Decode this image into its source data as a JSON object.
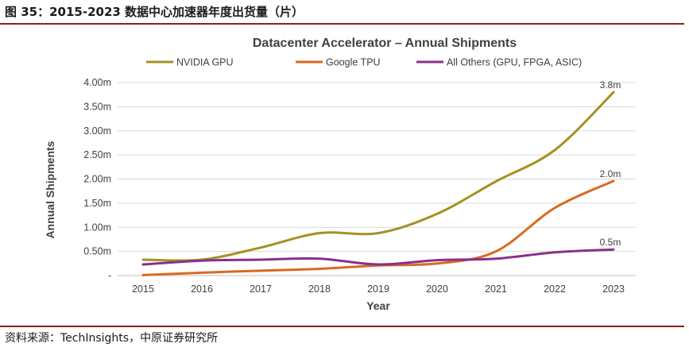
{
  "figure_title": "图 35：2015-2023 数据中心加速器年度出货量（片）",
  "source": "资料来源：TechInsights，中原证券研究所",
  "chart_data": {
    "type": "line",
    "title": "Datacenter Accelerator – Annual Shipments",
    "xlabel": "Year",
    "ylabel": "Annual Shipments",
    "x": [
      "2015",
      "2016",
      "2017",
      "2018",
      "2019",
      "2020",
      "2021",
      "2022",
      "2023"
    ],
    "ylim": [
      0,
      4.0
    ],
    "yticks": [
      0,
      0.5,
      1.0,
      1.5,
      2.0,
      2.5,
      3.0,
      3.5,
      4.0
    ],
    "ytick_labels": [
      "-",
      "0.50m",
      "1.00m",
      "1.50m",
      "2.00m",
      "2.50m",
      "3.00m",
      "3.50m",
      "4.00m"
    ],
    "series": [
      {
        "name": "NVIDIA GPU",
        "color": "#a59124",
        "values": [
          0.33,
          0.33,
          0.58,
          0.88,
          0.88,
          1.28,
          1.95,
          2.6,
          3.8
        ],
        "end_label": "3.8m"
      },
      {
        "name": "Google TPU",
        "color": "#d86a22",
        "values": [
          0.01,
          0.06,
          0.1,
          0.14,
          0.21,
          0.25,
          0.5,
          1.4,
          1.96
        ],
        "end_label": "2.0m"
      },
      {
        "name": "All Others (GPU, FPGA, ASIC)",
        "color": "#8a2f8c",
        "values": [
          0.23,
          0.31,
          0.33,
          0.35,
          0.23,
          0.32,
          0.35,
          0.48,
          0.54
        ],
        "end_label": "0.5m"
      }
    ]
  }
}
